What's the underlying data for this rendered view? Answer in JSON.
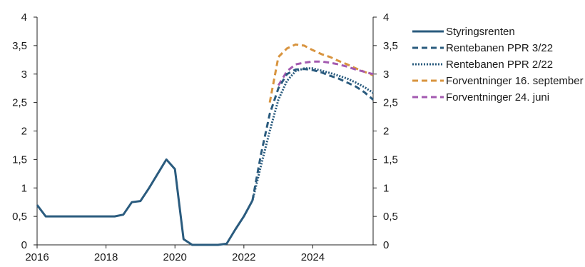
{
  "chart_data": {
    "type": "line",
    "x_range": [
      2016,
      2025.75
    ],
    "ylim": [
      0,
      4
    ],
    "x_ticks": [
      2016,
      2018,
      2020,
      2022,
      2024
    ],
    "x_tick_labels": [
      "2016",
      "2018",
      "2020",
      "2022",
      "2024"
    ],
    "y_ticks": [
      0,
      0.5,
      1,
      1.5,
      2,
      2.5,
      3,
      3.5,
      4
    ],
    "y_tick_labels": [
      "0",
      "0,5",
      "1",
      "1,5",
      "2",
      "2,5",
      "3",
      "3,5",
      "4"
    ],
    "right_y_axis": true,
    "grid": false,
    "legend_position": "top-right, outside plot",
    "series": [
      {
        "name": "Styringsrenten",
        "style": "solid",
        "color": "#2a5b7e",
        "x": [
          2016.0,
          2016.25,
          2016.5,
          2017.0,
          2017.5,
          2018.0,
          2018.25,
          2018.5,
          2018.75,
          2019.0,
          2019.25,
          2019.5,
          2019.75,
          2020.0,
          2020.25,
          2020.5,
          2020.75,
          2021.0,
          2021.25,
          2021.5,
          2021.75,
          2022.0,
          2022.25
        ],
        "y": [
          0.7,
          0.5,
          0.5,
          0.5,
          0.5,
          0.5,
          0.5,
          0.53,
          0.75,
          0.77,
          1.0,
          1.25,
          1.5,
          1.33,
          0.1,
          0.0,
          0.0,
          0.0,
          0.0,
          0.02,
          0.27,
          0.5,
          0.78
        ]
      },
      {
        "name": "Rentebanen PPR 3/22",
        "style": "dashed",
        "color": "#2a5b7e",
        "x": [
          2022.25,
          2022.5,
          2022.75,
          2023.0,
          2023.25,
          2023.5,
          2023.75,
          2024.0,
          2024.25,
          2024.5,
          2024.75,
          2025.0,
          2025.25,
          2025.5,
          2025.75
        ],
        "y": [
          0.78,
          1.6,
          2.3,
          2.75,
          3.0,
          3.08,
          3.09,
          3.07,
          3.03,
          2.97,
          2.92,
          2.85,
          2.78,
          2.68,
          2.55
        ]
      },
      {
        "name": "Rentebanen PPR 2/22",
        "style": "dotted",
        "color": "#2a5b7e",
        "x": [
          2022.25,
          2022.5,
          2022.75,
          2023.0,
          2023.25,
          2023.5,
          2023.75,
          2024.0,
          2024.25,
          2024.5,
          2024.75,
          2025.0,
          2025.25,
          2025.5,
          2025.75
        ],
        "y": [
          0.78,
          1.4,
          2.0,
          2.55,
          2.88,
          3.05,
          3.1,
          3.1,
          3.06,
          3.02,
          2.97,
          2.92,
          2.85,
          2.77,
          2.67
        ]
      },
      {
        "name": "Forventninger 16. september",
        "style": "dashed",
        "color": "#d8943f",
        "x": [
          2022.75,
          2023.0,
          2023.25,
          2023.5,
          2023.75,
          2024.0,
          2024.25,
          2024.5,
          2024.75,
          2025.0,
          2025.25,
          2025.5,
          2025.75
        ],
        "y": [
          2.5,
          3.3,
          3.45,
          3.52,
          3.5,
          3.42,
          3.35,
          3.3,
          3.23,
          3.17,
          3.1,
          3.04,
          2.98
        ]
      },
      {
        "name": "Forventninger 24. juni",
        "style": "dashed",
        "color": "#a35ab0",
        "x": [
          2023.0,
          2023.25,
          2023.5,
          2023.75,
          2024.0,
          2024.25,
          2024.5,
          2024.75,
          2025.0,
          2025.25,
          2025.5,
          2025.75
        ],
        "y": [
          2.8,
          3.05,
          3.17,
          3.2,
          3.22,
          3.22,
          3.2,
          3.17,
          3.13,
          3.08,
          3.04,
          3.0
        ]
      }
    ]
  }
}
